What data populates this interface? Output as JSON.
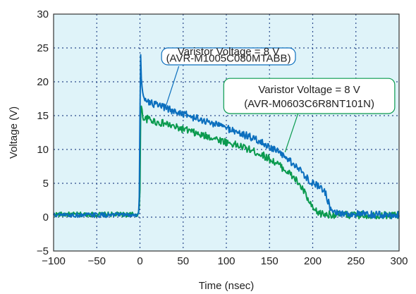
{
  "chart_data": {
    "type": "line",
    "xlabel": "Time (nsec)",
    "ylabel": "Voltage (V)",
    "xlim": [
      -100,
      300
    ],
    "ylim": [
      -5,
      30
    ],
    "xticks": [
      -100,
      -50,
      0,
      50,
      100,
      150,
      200,
      250,
      300
    ],
    "yticks": [
      -5,
      0,
      5,
      10,
      15,
      20,
      25,
      30
    ],
    "xtick_labels": [
      "−100",
      "−50",
      "0",
      "50",
      "100",
      "150",
      "200",
      "250",
      "300"
    ],
    "ytick_labels": [
      "−5",
      "0",
      "5",
      "10",
      "15",
      "20",
      "25",
      "30"
    ],
    "grid": true,
    "plot_background": "#dff3f9",
    "series": [
      {
        "color": "#0a9a4e",
        "x": [
          -100,
          -2,
          -1,
          0,
          0.5,
          1,
          2,
          3,
          5,
          10,
          20,
          30,
          40,
          50,
          60,
          70,
          80,
          90,
          100,
          110,
          120,
          130,
          140,
          150,
          160,
          170,
          180,
          190,
          195,
          200,
          205,
          210,
          215,
          220,
          240,
          260,
          280,
          300
        ],
        "y": [
          0.4,
          0.4,
          1.0,
          4.0,
          12.0,
          17.0,
          16.0,
          15.0,
          14.5,
          14.5,
          14.0,
          13.8,
          13.3,
          13.0,
          12.6,
          12.1,
          11.9,
          11.5,
          11.1,
          10.7,
          10.3,
          9.8,
          9.3,
          8.6,
          7.8,
          6.8,
          5.6,
          3.8,
          2.4,
          1.2,
          0.7,
          0.5,
          0.4,
          0.4,
          0.3,
          0.3,
          0.3,
          0.3
        ]
      },
      {
        "color": "#0b6fbe",
        "x": [
          -100,
          -2,
          -1,
          -0.5,
          0,
          0.5,
          1,
          2,
          3,
          5,
          10,
          20,
          30,
          40,
          50,
          60,
          70,
          80,
          90,
          100,
          110,
          120,
          130,
          140,
          150,
          160,
          170,
          180,
          190,
          200,
          205,
          210,
          215,
          220,
          230,
          240,
          260,
          280,
          300
        ],
        "y": [
          0.3,
          0.3,
          1.0,
          6.0,
          15.0,
          27.0,
          22.0,
          19.5,
          18.5,
          17.8,
          17.0,
          16.5,
          16.1,
          15.6,
          15.3,
          14.8,
          14.4,
          14.0,
          13.7,
          13.2,
          12.7,
          12.2,
          11.7,
          11.1,
          10.4,
          9.6,
          8.7,
          7.6,
          6.3,
          5.0,
          4.7,
          4.5,
          3.5,
          1.5,
          0.6,
          0.5,
          0.4,
          0.3,
          0.3
        ]
      }
    ],
    "annotations": [
      {
        "lines": [
          "Varistor Voltage = 8 V",
          "(AVR-M1005C080MTABB)"
        ],
        "color": "#0b6fbe",
        "box_anchor": [
          25,
          25
        ],
        "box_anchor_end": [
          180,
          22.5
        ],
        "pointer": [
          [
            45,
            22.3
          ],
          [
            30,
            16.4
          ]
        ]
      },
      {
        "lines": [
          "Varistor Voltage = 8 V",
          "(AVR-M0603C6R8NT101N)"
        ],
        "color": "#0a9a4e",
        "box_anchor": [
          97,
          20.5
        ],
        "box_anchor_end": [
          295,
          15.3
        ],
        "pointer": [
          [
            183,
            15.3
          ],
          [
            168,
            9.6
          ]
        ]
      }
    ]
  }
}
